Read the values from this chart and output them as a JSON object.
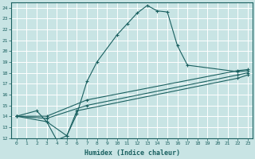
{
  "xlabel": "Humidex (Indice chaleur)",
  "xlim": [
    -0.5,
    23.5
  ],
  "ylim": [
    12,
    24.5
  ],
  "yticks": [
    12,
    13,
    14,
    15,
    16,
    17,
    18,
    19,
    20,
    21,
    22,
    23,
    24
  ],
  "xticks": [
    0,
    1,
    2,
    3,
    4,
    5,
    6,
    7,
    8,
    9,
    10,
    11,
    12,
    13,
    14,
    15,
    16,
    17,
    18,
    19,
    20,
    21,
    22,
    23
  ],
  "bg_color": "#c8e4e4",
  "line_color": "#1a6060",
  "grid_color": "#ffffff",
  "lines": [
    {
      "x": [
        0,
        2,
        3,
        4,
        5,
        6,
        7,
        8,
        10,
        11,
        12,
        13,
        14,
        15,
        16,
        17,
        22,
        23
      ],
      "y": [
        14,
        14.5,
        13.5,
        11.8,
        12.2,
        14.2,
        17.2,
        19.0,
        21.5,
        22.5,
        23.5,
        24.2,
        23.7,
        23.6,
        20.5,
        18.7,
        18.1,
        18.2
      ],
      "has_marker": true
    },
    {
      "x": [
        0,
        3,
        7,
        22,
        23
      ],
      "y": [
        14,
        14.0,
        15.5,
        18.2,
        18.3
      ],
      "has_marker": true
    },
    {
      "x": [
        0,
        3,
        7,
        22,
        23
      ],
      "y": [
        14,
        13.8,
        15.0,
        17.8,
        18.0
      ],
      "has_marker": true
    },
    {
      "x": [
        0,
        3,
        5,
        6,
        22,
        23
      ],
      "y": [
        14,
        13.5,
        12.2,
        14.5,
        17.5,
        17.8
      ],
      "has_marker": true
    }
  ]
}
